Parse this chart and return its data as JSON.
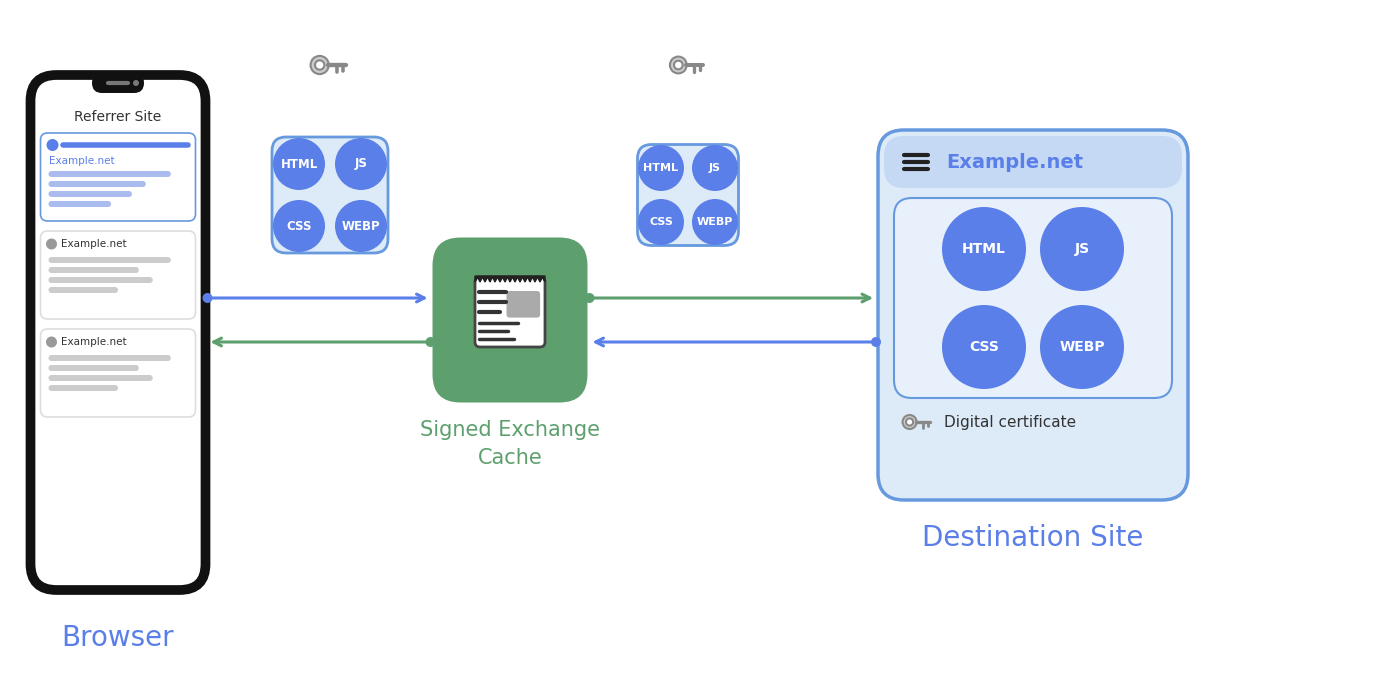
{
  "bg_color": "#ffffff",
  "blue_color": "#5b7fe8",
  "green_color": "#5da06e",
  "light_blue_fill": "#ddeaf8",
  "light_blue_border": "#6699dd",
  "green_arrow": "#5da06e",
  "blue_arrow": "#5b7fe8",
  "label_browser": "Browser",
  "label_cache": "Signed Exchange\nCache",
  "label_dest": "Destination Site",
  "label_referrer": "Referrer Site",
  "label_example": "Example.net",
  "label_digital_cert": "Digital certificate",
  "circle_labels": [
    "HTML",
    "JS",
    "CSS",
    "WEBP"
  ],
  "phone_color": "#111111",
  "dark_text": "#333333",
  "key_color": "#555555"
}
